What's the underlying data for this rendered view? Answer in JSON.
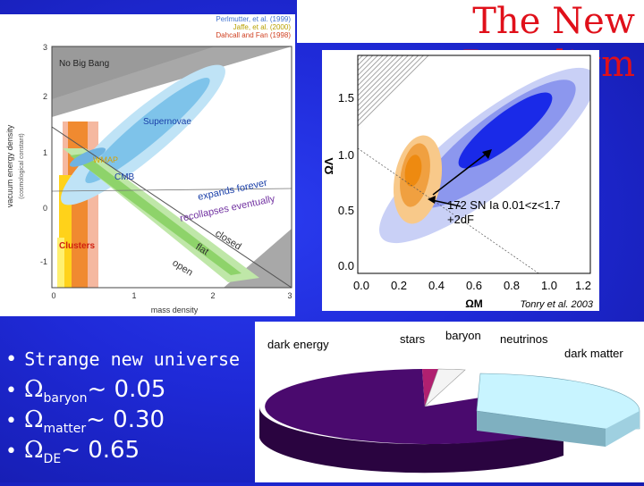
{
  "slide": {
    "title": "The New Paradigm"
  },
  "left_plot": {
    "citations": [
      "Perlmutter, et al. (1999)",
      "Jaffe, et al. (2000)",
      "Dahcall and Fan (1998)"
    ],
    "citation_colors": [
      "#3c6fd0",
      "#b8a000",
      "#d04020"
    ],
    "ylabel": "vacuum energy density",
    "ylabel_sub": "(cosmological constant)",
    "xlabel": "mass density",
    "yticks": [
      "3",
      "2",
      "1",
      "0",
      "-1"
    ],
    "xticks": [
      "0",
      "1",
      "2",
      "3"
    ],
    "labels": {
      "no_big_bang": "No Big Bang",
      "supernovae": "Supernovae",
      "wmap": "WMAP",
      "cmb": "CMB",
      "clusters": "Clusters",
      "expands_forever": "expands forever",
      "recollapses": "recollapses eventually",
      "closed": "closed",
      "flat": "flat",
      "open": "open"
    }
  },
  "right_plot": {
    "ylabel": "ΩΛ",
    "xlabel": "ΩM",
    "credit": "Tonry et al. 2003",
    "annotation_line1": "172 SN Ia 0.01<z<1.7",
    "annotation_line2": "+2dF",
    "xticks": [
      "0.0",
      "0.2",
      "0.4",
      "0.6",
      "0.8",
      "1.0",
      "1.2"
    ],
    "yticks": [
      "0.0",
      "0.5",
      "1.0",
      "1.5"
    ]
  },
  "bullets": {
    "item1": "Strange new universe",
    "item2_symbol": "Ω",
    "item2_sub": "baryon",
    "item2_value": "~ 0.05",
    "item3_symbol": "Ω",
    "item3_sub": "matter",
    "item3_value": "~ 0.30",
    "item4_symbol": "Ω",
    "item4_sub": "DE",
    "item4_value": "~ 0.65"
  },
  "pie": {
    "labels": {
      "dark_energy": "dark energy",
      "stars": "stars",
      "baryon": "baryon",
      "neutrinos": "neutrinos",
      "dark_matter": "dark matter"
    },
    "colors": {
      "dark_energy": "#4a0a6e",
      "stars": "#b02070",
      "baryon": "#ffffff",
      "dark_matter": "#c8f4ff"
    }
  }
}
